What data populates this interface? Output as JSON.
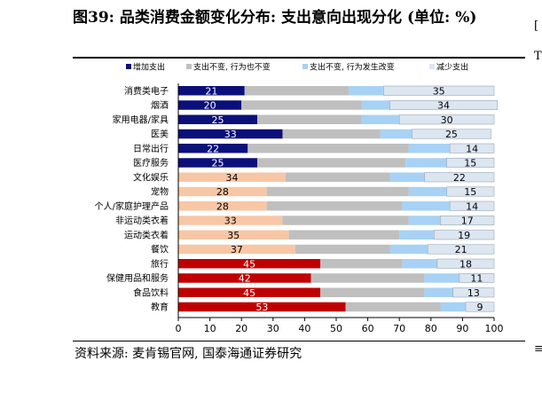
{
  "title": "图39: 品类消费金额变化分布: 支出意向出现分化 (单位: %)",
  "source": "资料来源: 麦肯锡官网, 国泰海通证券研究",
  "colors": {
    "increase_navy": "#0b0f7a",
    "increase_peach": "#f7c7a5",
    "increase_red": "#c00000",
    "same_same": "#bfbfbf",
    "same_change": "#a7d2f5",
    "decrease": "#dce6f1"
  },
  "chart_data": {
    "type": "bar",
    "orientation": "horizontal",
    "stacked": true,
    "legend_position": "top",
    "grid": false,
    "xlim": [
      0,
      100
    ],
    "xticks": [
      0,
      10,
      20,
      30,
      40,
      50,
      60,
      70,
      80,
      90,
      100
    ],
    "categories": [
      "消费类电子",
      "烟酒",
      "家用电器/家具",
      "医美",
      "日常出行",
      "医疗服务",
      "文化娱乐",
      "宠物",
      "个人/家庭护理产品",
      "非运动类衣着",
      "运动类衣着",
      "餐饮",
      "旅行",
      "保健用品和服务",
      "食品饮料",
      "教育"
    ],
    "increase_color_groups": [
      "navy",
      "navy",
      "navy",
      "navy",
      "navy",
      "navy",
      "peach",
      "peach",
      "peach",
      "peach",
      "peach",
      "peach",
      "red",
      "red",
      "red",
      "red"
    ],
    "series": [
      {
        "name": "增加支出",
        "values": [
          21,
          20,
          25,
          33,
          22,
          25,
          34,
          28,
          28,
          33,
          35,
          37,
          45,
          42,
          45,
          53
        ]
      },
      {
        "name": "支出不变, 行为也不变",
        "values": [
          33,
          38,
          33,
          31,
          51,
          47,
          33,
          45,
          43,
          40,
          35,
          30,
          26,
          36,
          33,
          30
        ]
      },
      {
        "name": "支出不变, 行为发生改变",
        "values": [
          11,
          9,
          12,
          10,
          13,
          13,
          11,
          12,
          15,
          10,
          11,
          12,
          11,
          11,
          9,
          8
        ]
      },
      {
        "name": "减少支出",
        "values": [
          35,
          34,
          30,
          25,
          14,
          15,
          22,
          15,
          14,
          17,
          19,
          21,
          18,
          11,
          13,
          9
        ]
      }
    ],
    "labeled_series": [
      "增加支出",
      "减少支出"
    ]
  }
}
